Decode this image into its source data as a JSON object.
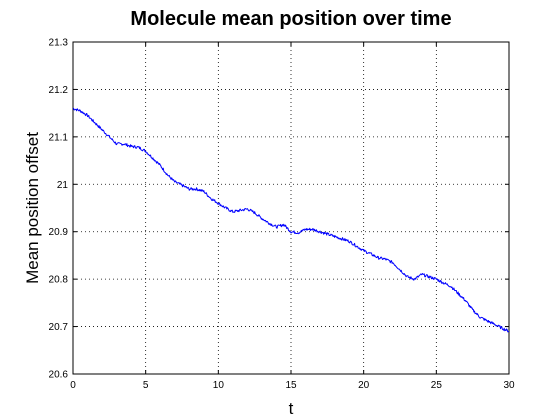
{
  "chart_data": {
    "type": "line",
    "title": "Molecule mean position over time",
    "xlabel": "t",
    "ylabel": "Mean position offset",
    "xlim": [
      0,
      30
    ],
    "ylim": [
      20.6,
      21.3
    ],
    "xticks": [
      "0",
      "5",
      "10",
      "15",
      "20",
      "25",
      "30"
    ],
    "yticks": [
      "20.6",
      "20.7",
      "20.8",
      "20.9",
      "21",
      "21.1",
      "21.2",
      "21.3"
    ],
    "grid": true,
    "legend": "none",
    "line_color": "#0000ff",
    "series": [
      {
        "x": [
          0,
          0.5,
          1,
          1.5,
          2,
          2.5,
          3,
          3.5,
          4,
          4.5,
          5,
          5.5,
          6,
          6.5,
          7,
          7.5,
          8,
          8.5,
          9,
          9.5,
          10,
          10.5,
          11,
          11.5,
          12,
          12.5,
          13,
          13.5,
          14,
          14.5,
          15,
          15.5,
          16,
          16.5,
          17,
          17.5,
          18,
          18.5,
          19,
          19.5,
          20,
          20.5,
          21,
          21.5,
          22,
          22.5,
          23,
          23.5,
          24,
          24.5,
          25,
          25.5,
          26,
          26.5,
          27,
          27.5,
          28,
          28.5,
          29,
          29.5,
          30
        ],
        "values": [
          21.16,
          21.155,
          21.145,
          21.13,
          21.115,
          21.1,
          21.085,
          21.085,
          21.08,
          21.078,
          21.07,
          21.055,
          21.04,
          21.02,
          21.005,
          20.998,
          20.99,
          20.99,
          20.985,
          20.97,
          20.96,
          20.95,
          20.942,
          20.945,
          20.948,
          20.94,
          20.928,
          20.918,
          20.91,
          20.915,
          20.9,
          20.898,
          20.905,
          20.905,
          20.9,
          20.895,
          20.89,
          20.885,
          20.88,
          20.87,
          20.86,
          20.853,
          20.845,
          20.842,
          20.835,
          20.82,
          20.805,
          20.8,
          20.81,
          20.805,
          20.8,
          20.792,
          20.785,
          20.77,
          20.755,
          20.735,
          20.72,
          20.712,
          20.705,
          20.697,
          20.69
        ]
      }
    ]
  }
}
